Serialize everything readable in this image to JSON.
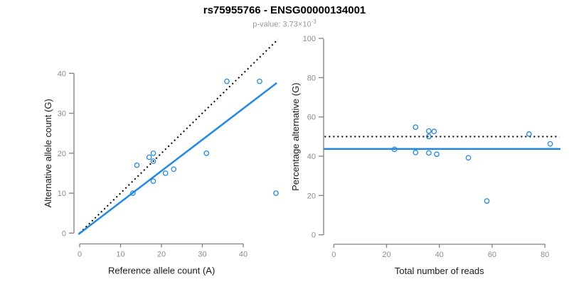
{
  "header": {
    "title": "rs75955766 - ENSG00000134001",
    "subtitle_prefix": "p-value: 3.73×10",
    "subtitle_exponent": "-3"
  },
  "colors": {
    "accent_blue": "#2288E8",
    "dotted_black": "#000000",
    "axis_gray": "#808080",
    "tick_label_gray": "#8C8C8C",
    "axis_title_black": "#1A1A1A"
  },
  "chart_data": [
    {
      "id": "allele-counts",
      "type": "scatter",
      "xlabel": "Reference allele count (A)",
      "ylabel": "Alternative allele count (G)",
      "x_ticks": [
        0,
        10,
        20,
        30,
        40
      ],
      "y_ticks": [
        0,
        10,
        20,
        30,
        40
      ],
      "xlim": [
        0,
        48.6
      ],
      "ylim": [
        0,
        48.6
      ],
      "grid": false,
      "points": [
        [
          13,
          10
        ],
        [
          14,
          17
        ],
        [
          17,
          19
        ],
        [
          18,
          20
        ],
        [
          18,
          18
        ],
        [
          18,
          13
        ],
        [
          21,
          15
        ],
        [
          23,
          16
        ],
        [
          31,
          20
        ],
        [
          36,
          38
        ],
        [
          44,
          38
        ],
        [
          48,
          10
        ]
      ],
      "lines": [
        {
          "name": "identity-line",
          "style": "dotted",
          "color": "#000000",
          "width": 2,
          "from": [
            0,
            0
          ],
          "to": [
            48.5,
            48.5
          ]
        },
        {
          "name": "regression-line",
          "style": "solid",
          "color": "#2288E8",
          "width": 2.5,
          "from": [
            -0.3,
            -0.3
          ],
          "to": [
            48.2,
            37.6
          ]
        }
      ],
      "px": {
        "x0": 112,
        "sx": 5.75,
        "y0": 328.3,
        "sy": 5.625,
        "vx": 104,
        "vy_top": 103.3,
        "vy_bot": 328.3,
        "hy": 343.5,
        "hx_left": 112,
        "hx_right": 342.3,
        "ylabel_x": 72
      }
    },
    {
      "id": "percentage-vs-reads",
      "type": "scatter",
      "xlabel": "Total number of reads",
      "ylabel": "Percentage alternative (G)",
      "x_ticks": [
        0,
        20,
        40,
        60,
        80
      ],
      "y_ticks": [
        0,
        20,
        40,
        60,
        80,
        100
      ],
      "xlim": [
        0,
        86
      ],
      "ylim": [
        0,
        100
      ],
      "grid": false,
      "points": [
        [
          23,
          43.5
        ],
        [
          31,
          54.8
        ],
        [
          31,
          41.9
        ],
        [
          36,
          52.8
        ],
        [
          36,
          50.0
        ],
        [
          36,
          41.7
        ],
        [
          38,
          52.6
        ],
        [
          39,
          41.0
        ],
        [
          51,
          39.2
        ],
        [
          58,
          17.2
        ],
        [
          74,
          51.3
        ],
        [
          82,
          46.3
        ]
      ],
      "lines": [
        {
          "name": "fifty-percent-line",
          "style": "dotted",
          "color": "#000000",
          "width": 2,
          "from": [
            -3.5,
            50
          ],
          "to": [
            85.5,
            50
          ]
        },
        {
          "name": "mean-percentage-line",
          "style": "solid",
          "color": "#2288E8",
          "width": 2.5,
          "from": [
            -3.8,
            43.7
          ],
          "to": [
            85.9,
            43.7
          ]
        }
      ],
      "px": {
        "x0": 469.3,
        "sx": 3.71,
        "y0": 330.7,
        "sy": 2.767,
        "vx": 455,
        "vy_top": 54.7,
        "vy_bot": 330.7,
        "hy": 344,
        "hx_left": 469.3,
        "hx_right": 766.3,
        "ylabel_x": 420
      }
    }
  ]
}
